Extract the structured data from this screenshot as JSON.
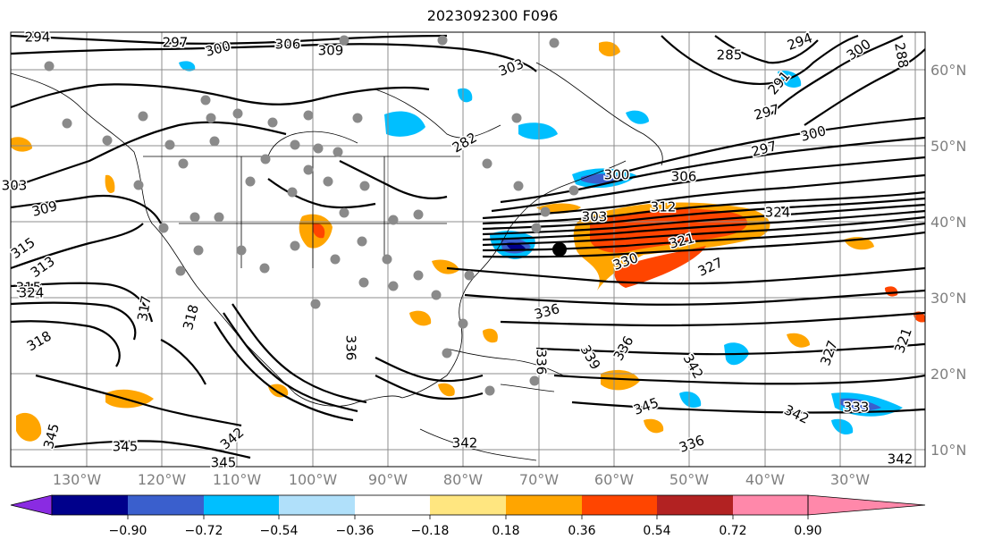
{
  "title": "2023092300 F096",
  "lon_labels": [
    "130°W",
    "120°W",
    "110°W",
    "100°W",
    "90°W",
    "80°W",
    "70°W",
    "60°W",
    "50°W",
    "40°W",
    "30°W"
  ],
  "lat_labels": [
    "60°N",
    "50°N",
    "40°N",
    "30°N",
    "20°N",
    "10°N"
  ],
  "colorbar": {
    "tick_labels": [
      "−0.90",
      "−0.72",
      "−0.54",
      "−0.36",
      "−0.18",
      "0.18",
      "0.36",
      "0.54",
      "0.72",
      "0.90"
    ],
    "colors": [
      "#8a2be2",
      "#00008b",
      "#3a5fcd",
      "#00bfff",
      "#b0e0fa",
      "#ffffff",
      "#ffe680",
      "#ffa500",
      "#ff4500",
      "#b22222",
      "#ff88aa"
    ]
  },
  "contour_labels": [
    "294",
    "297",
    "300",
    "306",
    "309",
    "303",
    "282",
    "285",
    "294",
    "300",
    "288",
    "291",
    "297",
    "300",
    "297",
    "300",
    "306",
    "303",
    "312",
    "324",
    "321",
    "330",
    "327",
    "303",
    "309",
    "315",
    "313",
    "315",
    "324",
    "318",
    "317",
    "318",
    "336",
    "336",
    "336",
    "339",
    "342",
    "345",
    "345",
    "345",
    "342",
    "336",
    "342",
    "345",
    "342",
    "327",
    "321",
    "333",
    "336",
    "342"
  ]
}
